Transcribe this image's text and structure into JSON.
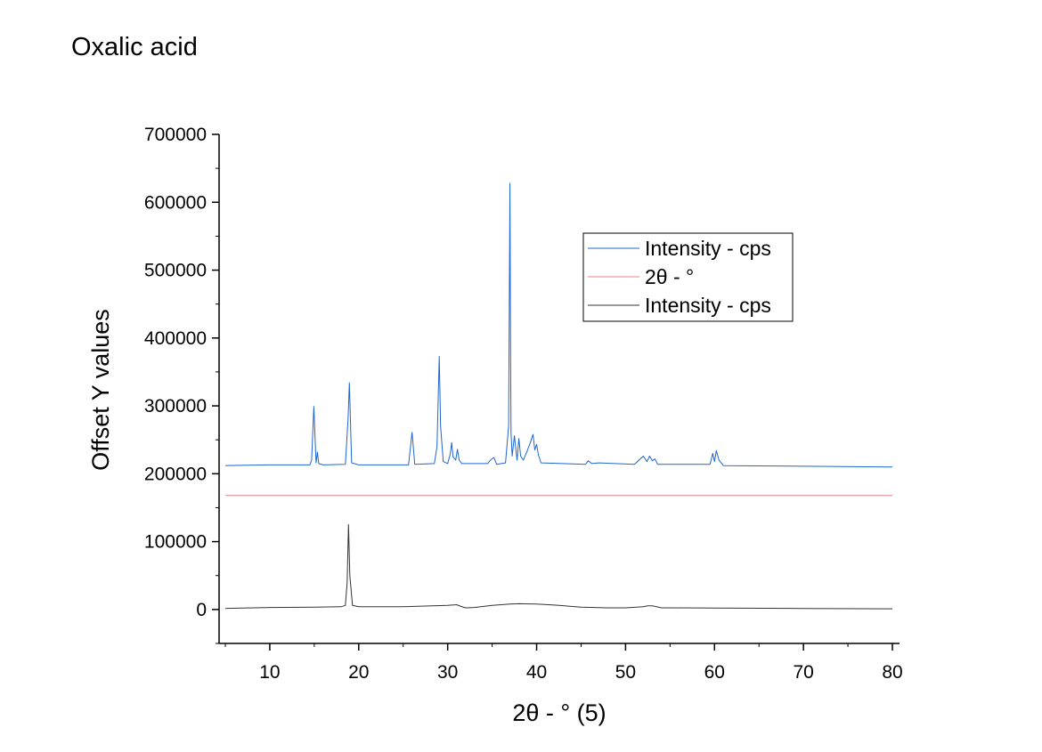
{
  "chart_data": {
    "type": "line",
    "title": "Oxalic acid",
    "xlabel": "2θ - ° (5)",
    "ylabel": "Offset Y values",
    "xlim": [
      4.3,
      80.8
    ],
    "ylim": [
      -50000,
      700000
    ],
    "xticks": [
      10,
      20,
      30,
      40,
      50,
      60,
      70,
      80
    ],
    "yticks": [
      0,
      100000,
      200000,
      300000,
      400000,
      500000,
      600000,
      700000
    ],
    "grid": false,
    "legend_position": "upper-right",
    "legend": [
      "Intensity - cps",
      "2θ - °",
      "Intensity - cps"
    ],
    "series": [
      {
        "name": "Intensity - cps",
        "color": "#1f66d1",
        "baseline": 212000,
        "x": [
          5,
          10,
          14.5,
          14.7,
          14.95,
          15.2,
          15.35,
          15.5,
          16,
          18.5,
          18.8,
          18.95,
          19.2,
          20,
          25.6,
          26,
          26.3,
          28.5,
          28.8,
          29.05,
          29.2,
          29.5,
          30,
          30.3,
          30.45,
          30.6,
          30.9,
          31.1,
          31.3,
          31.6,
          34.5,
          34.8,
          35.2,
          35.5,
          36.5,
          36.85,
          37.0,
          37.05,
          37.12,
          37.25,
          37.5,
          37.8,
          38.0,
          38.2,
          38.5,
          38.9,
          39.3,
          39.6,
          39.8,
          40.0,
          40.2,
          40.5,
          45.5,
          45.8,
          46.2,
          47.0,
          51.0,
          51.5,
          52.0,
          52.4,
          52.7,
          53.0,
          53.3,
          53.6,
          59.5,
          59.8,
          60.0,
          60.2,
          60.5,
          61,
          70,
          80
        ],
        "y": [
          212000,
          213000,
          213000,
          220000,
          299000,
          216000,
          232000,
          215000,
          213000,
          214000,
          280000,
          334000,
          216000,
          213000,
          213000,
          261000,
          214000,
          215000,
          240000,
          373000,
          270000,
          218000,
          215000,
          230000,
          246000,
          225000,
          220000,
          236000,
          220000,
          215000,
          215000,
          220000,
          224000,
          214000,
          216000,
          270000,
          628000,
          430000,
          260000,
          226000,
          256000,
          220000,
          252000,
          226000,
          220000,
          232000,
          246000,
          258000,
          235000,
          243000,
          228000,
          216000,
          214000,
          219000,
          215000,
          216000,
          214000,
          220000,
          226000,
          218000,
          226000,
          219000,
          222000,
          214000,
          214000,
          230000,
          218000,
          234000,
          220000,
          212000,
          211000,
          210000
        ]
      },
      {
        "name": "2θ - °",
        "color": "#e8808a",
        "baseline": 168000,
        "x": [
          5,
          80
        ],
        "y": [
          168000,
          168000
        ]
      },
      {
        "name": "Intensity - cps",
        "color": "#333333",
        "baseline": 1000,
        "x": [
          5,
          10,
          15,
          18,
          18.5,
          18.7,
          18.85,
          19.0,
          19.3,
          20,
          25,
          30,
          31,
          31.5,
          32,
          33,
          35,
          37,
          38,
          40,
          42,
          45,
          48,
          50,
          52,
          52.5,
          53,
          53.5,
          54,
          55,
          60,
          70,
          80
        ],
        "y": [
          1500,
          3000,
          3500,
          4000,
          6000,
          40000,
          125000,
          50000,
          6000,
          4000,
          4000,
          6000,
          7000,
          4500,
          2500,
          3000,
          6000,
          8000,
          8500,
          8000,
          6500,
          3500,
          2500,
          2500,
          4000,
          5500,
          5500,
          4000,
          2500,
          2500,
          2000,
          1500,
          1000
        ]
      }
    ]
  }
}
